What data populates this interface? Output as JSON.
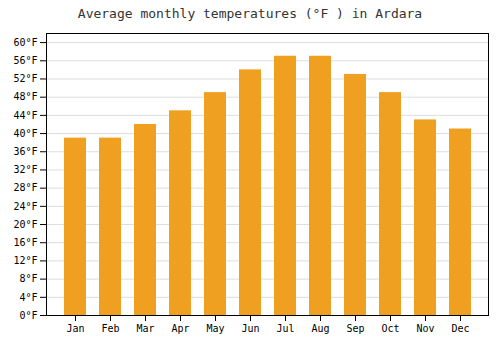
{
  "chart_data": {
    "type": "bar",
    "title": "Average monthly temperatures (°F ) in Ardara",
    "categories": [
      "Jan",
      "Feb",
      "Mar",
      "Apr",
      "May",
      "Jun",
      "Jul",
      "Aug",
      "Sep",
      "Oct",
      "Nov",
      "Dec"
    ],
    "values": [
      39,
      39,
      42,
      45,
      49,
      54,
      57,
      57,
      53,
      49,
      43,
      41
    ],
    "color": "#F0A020",
    "ylim": [
      0,
      62
    ],
    "yticks": [
      {
        "value": 0,
        "label": "0°F"
      },
      {
        "value": 4,
        "label": "4°F"
      },
      {
        "value": 8,
        "label": "8°F"
      },
      {
        "value": 12,
        "label": "12°F"
      },
      {
        "value": 16,
        "label": "16°F"
      },
      {
        "value": 20,
        "label": "20°F"
      },
      {
        "value": 24,
        "label": "24°F"
      },
      {
        "value": 28,
        "label": "28°F"
      },
      {
        "value": 32,
        "label": "32°F"
      },
      {
        "value": 36,
        "label": "36°F"
      },
      {
        "value": 40,
        "label": "40°F"
      },
      {
        "value": 44,
        "label": "44°F"
      },
      {
        "value": 48,
        "label": "48°F"
      },
      {
        "value": 52,
        "label": "52°F"
      },
      {
        "value": 56,
        "label": "56°F"
      },
      {
        "value": 60,
        "label": "60°F"
      }
    ],
    "grid": true
  }
}
